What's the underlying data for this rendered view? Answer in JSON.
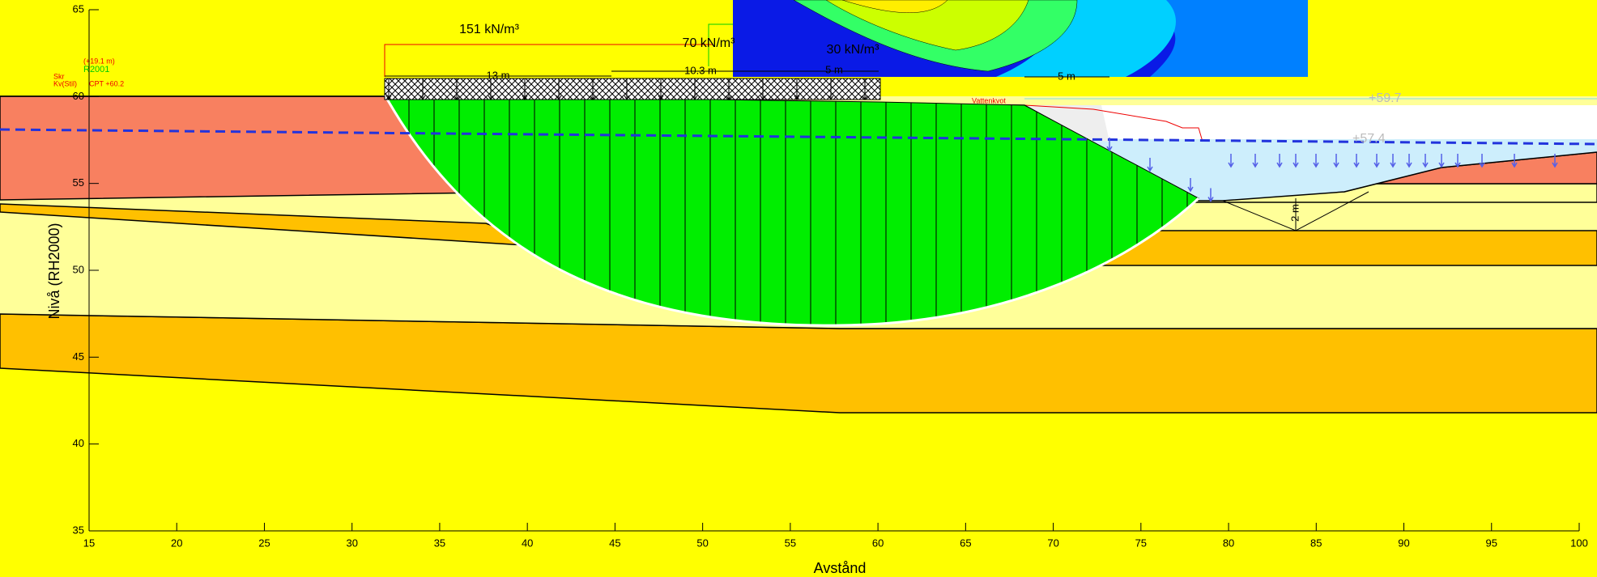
{
  "chart_data": {
    "type": "section",
    "xlabel": "Avstånd",
    "ylabel": "Nivå (RH2000)",
    "xlim": [
      15,
      100
    ],
    "ylim": [
      35,
      65
    ],
    "xticks": [
      15,
      20,
      25,
      30,
      35,
      40,
      45,
      50,
      55,
      60,
      65,
      70,
      75,
      80,
      85,
      90,
      95,
      100
    ],
    "yticks": [
      35,
      40,
      45,
      50,
      55,
      60,
      65
    ],
    "annotations": [
      "151 kN/m³",
      "70 kN/m³",
      "30 kN/m³",
      "13 m",
      "10.3 m",
      "5 m",
      "5 m",
      "2 m",
      "+59.7",
      "+57.4",
      "Skr",
      "Kv(Stil)",
      "(+19.1 m)",
      "R2001",
      "CPT +60.2",
      "Vattenkvot"
    ]
  }
}
